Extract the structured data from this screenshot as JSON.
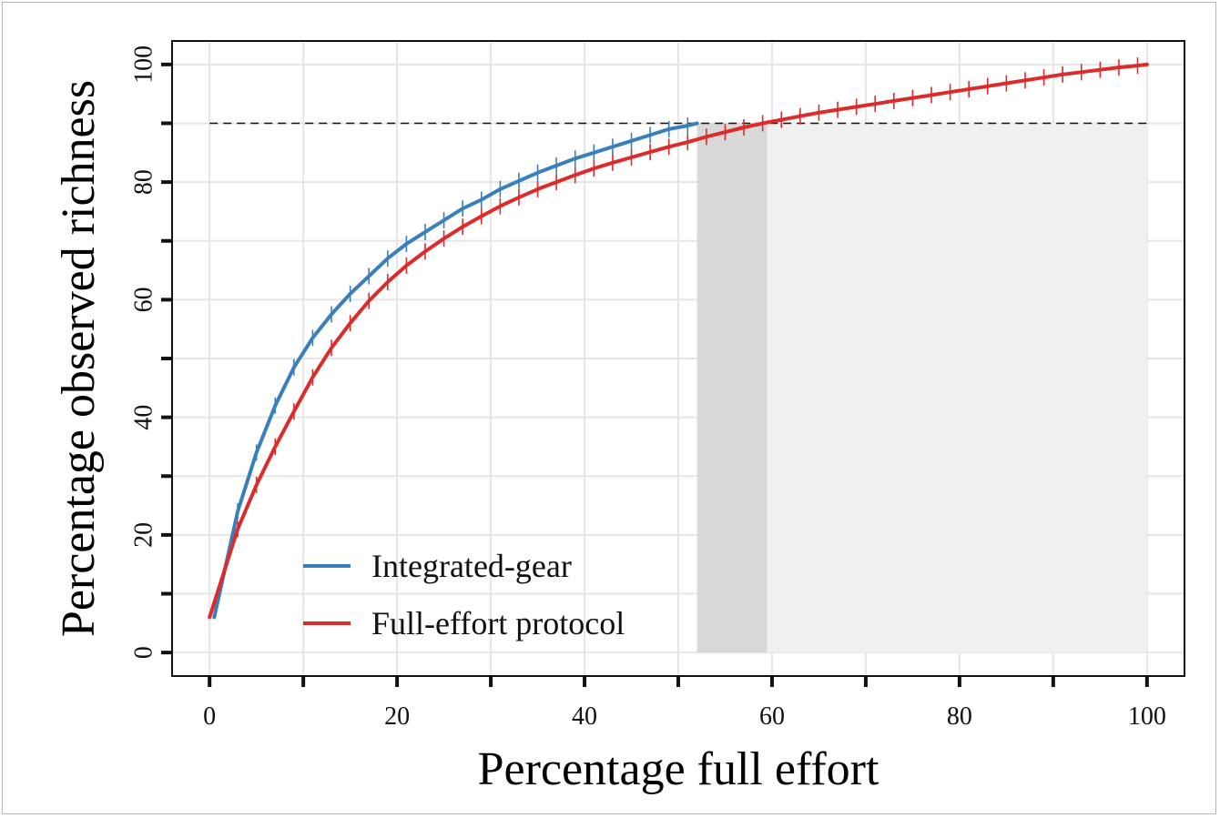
{
  "chart_data": {
    "type": "line",
    "xlabel": "Percentage full effort",
    "ylabel": "Percentage observed richness",
    "xlim": [
      -4,
      104
    ],
    "ylim": [
      -4,
      104
    ],
    "x_ticks": [
      0,
      20,
      40,
      60,
      80,
      100
    ],
    "y_ticks": [
      0,
      20,
      40,
      60,
      80,
      100
    ],
    "x_minor_ticks": [
      10,
      30,
      50,
      70,
      90
    ],
    "y_minor_ticks": [
      10,
      30,
      50,
      70,
      90
    ],
    "grid": true,
    "legend_position": "bottom-left",
    "reference_line": {
      "y": 90,
      "x_range": [
        0,
        100
      ],
      "style": "dashed"
    },
    "shaded_regions": [
      {
        "x_range": [
          52,
          59.5
        ],
        "y_range": [
          0,
          90
        ],
        "color": "#d9d9d9"
      },
      {
        "x_range": [
          59.5,
          100
        ],
        "y_range": [
          0,
          90
        ],
        "color": "#f0f0f0"
      }
    ],
    "series": [
      {
        "name": "Integrated-gear",
        "color": "#3a7fbb",
        "x": [
          0.5,
          3,
          5,
          7,
          9,
          11,
          13,
          15,
          17,
          19,
          21,
          23,
          25,
          27,
          29,
          31,
          33,
          35,
          37,
          39,
          41,
          43,
          45,
          47,
          49,
          51,
          52
        ],
        "y": [
          6,
          24,
          34,
          42,
          48.5,
          53.5,
          57.5,
          61,
          64,
          67,
          69.5,
          71.5,
          73.5,
          75.5,
          77,
          78.8,
          80.2,
          81.6,
          82.8,
          84,
          85,
          86,
          87,
          88,
          89,
          89.6,
          90
        ]
      },
      {
        "name": "Full-effort protocol",
        "color": "#dd2a2a",
        "x": [
          0,
          3,
          5,
          7,
          9,
          11,
          13,
          15,
          17,
          19,
          21,
          23,
          25,
          27,
          29,
          31,
          33,
          35,
          37,
          39,
          41,
          43,
          45,
          47,
          49,
          51,
          53,
          55,
          57,
          59,
          61,
          63,
          65,
          67,
          69,
          71,
          73,
          75,
          77,
          79,
          81,
          83,
          85,
          87,
          89,
          91,
          93,
          95,
          97,
          99,
          100
        ],
        "y": [
          6,
          21,
          28.5,
          35,
          41,
          46.8,
          51.8,
          56,
          59.8,
          63,
          65.8,
          68.2,
          70.4,
          72.4,
          74.2,
          75.9,
          77.4,
          78.8,
          80,
          81.2,
          82.3,
          83.3,
          84.2,
          85.1,
          86,
          86.8,
          87.7,
          88.5,
          89.3,
          90,
          90.6,
          91.2,
          91.8,
          92.3,
          92.8,
          93.3,
          93.8,
          94.3,
          94.8,
          95.3,
          95.8,
          96.3,
          96.8,
          97.3,
          97.8,
          98.3,
          98.7,
          99.1,
          99.5,
          99.8,
          100
        ]
      }
    ]
  }
}
